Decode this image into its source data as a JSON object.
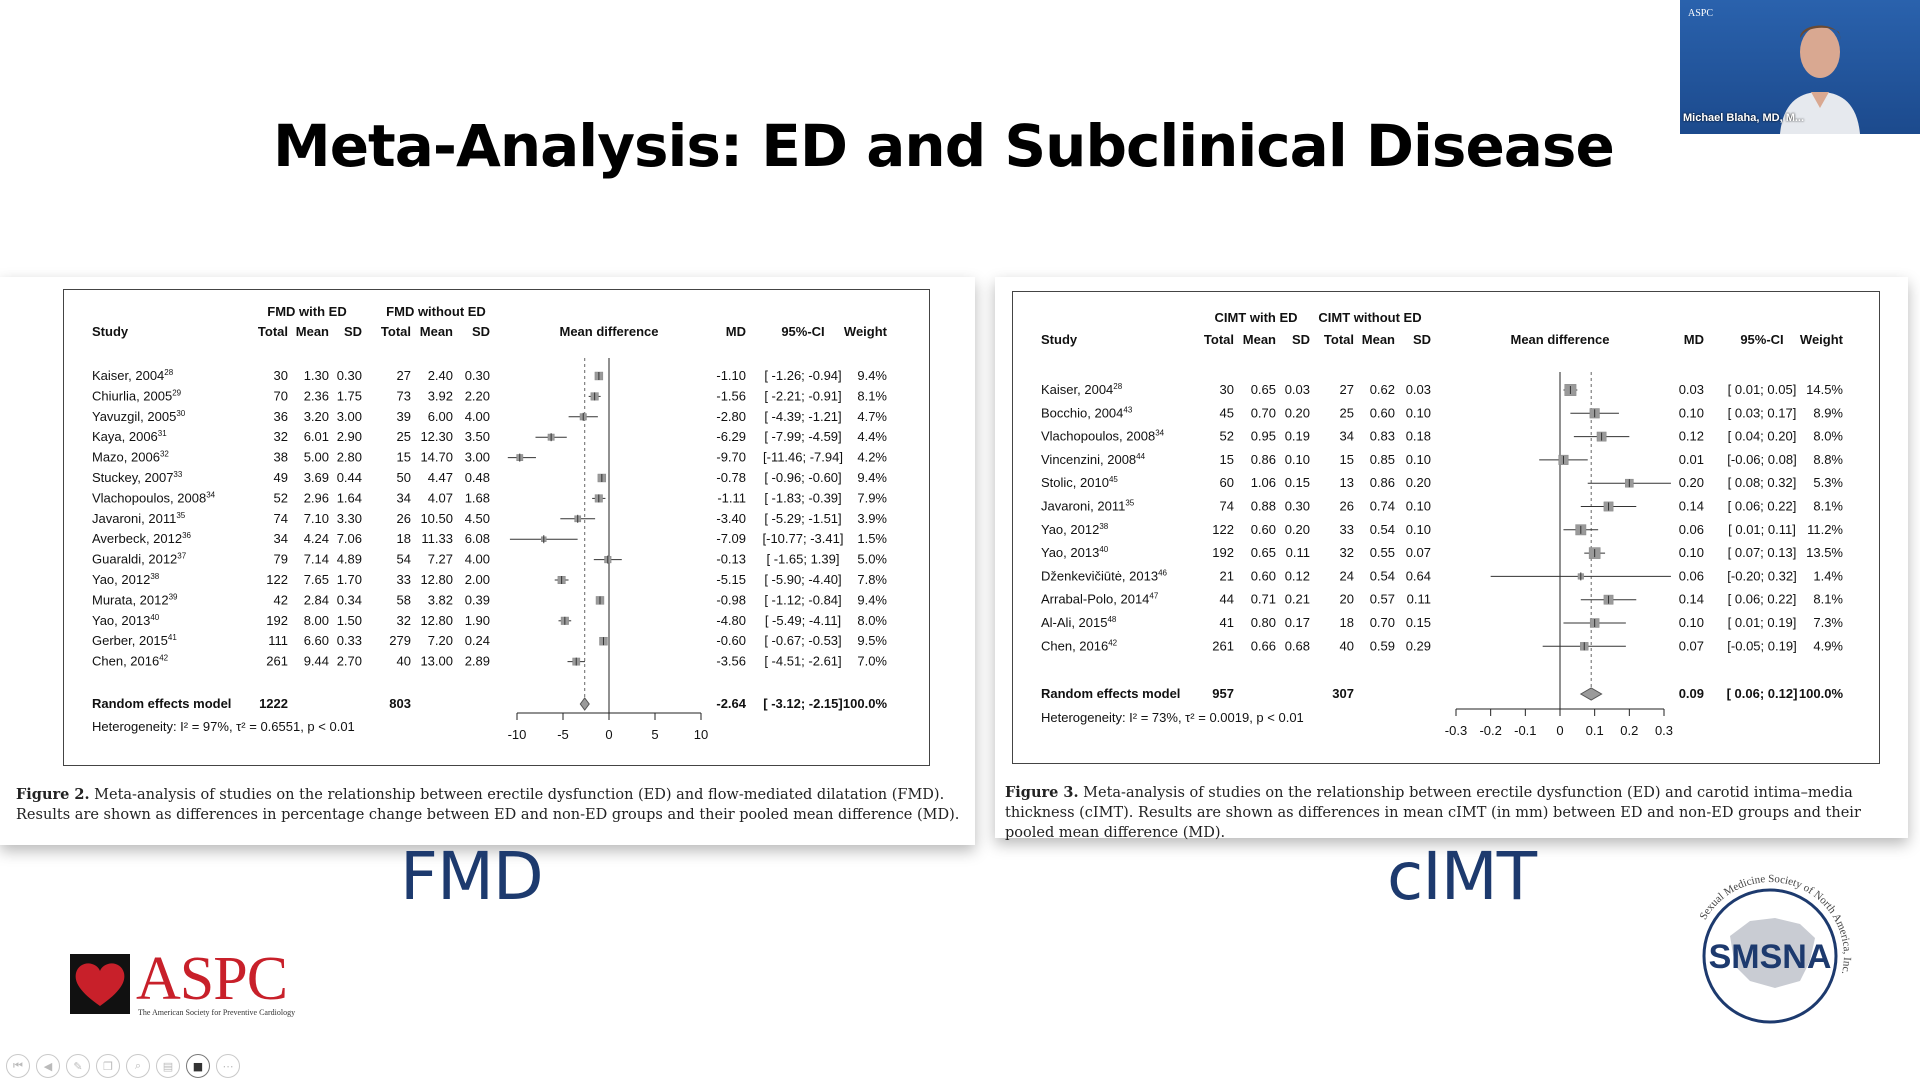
{
  "slide": {
    "title": "Meta-Analysis: ED and Subclinical Disease",
    "left_label": "FMD",
    "right_label": "cIMT"
  },
  "video": {
    "participant_name": "Michael Blaha, MD, M...",
    "logo_text": "ASPC"
  },
  "logos": {
    "aspc": {
      "name": "ASPC",
      "subtitle": "The American Society for Preventive Cardiology",
      "color": "#c8202a"
    },
    "smsna": {
      "name": "SMSNA",
      "ring_text": "Sexual Medicine Society of North America, Inc.",
      "color": "#1d3a6e"
    }
  },
  "toolbar": {
    "buttons": [
      {
        "icon": "first-page-icon",
        "glyph": "⏮"
      },
      {
        "icon": "previous-icon",
        "glyph": "◀"
      },
      {
        "icon": "pen-icon",
        "glyph": "✎"
      },
      {
        "icon": "copy-icon",
        "glyph": "❐"
      },
      {
        "icon": "zoom-icon",
        "glyph": "⌕"
      },
      {
        "icon": "slides-icon",
        "glyph": "▤"
      },
      {
        "icon": "camera-icon",
        "glyph": "■"
      },
      {
        "icon": "more-icon",
        "glyph": "⋯"
      }
    ]
  },
  "captions": {
    "fmd": {
      "figure": "Figure 2.",
      "text": "Meta-analysis of studies on the relationship between erectile dysfunction (ED) and flow-mediated dilatation (FMD). Results are shown as differences in percentage change between ED and non-ED groups and their pooled mean difference (MD)."
    },
    "cimt": {
      "figure": "Figure 3.",
      "text": "Meta-analysis of studies on the relationship between erectile dysfunction (ED) and carotid intima–media thickness (cIMT). Results are shown as differences in mean cIMT (in mm) between ED and non-ED groups and their pooled mean difference (MD)."
    }
  },
  "chart_data": [
    {
      "type": "forest",
      "id": "fmd",
      "group_headers": [
        "FMD with ED",
        "FMD without ED"
      ],
      "columns": [
        "Study",
        "Total",
        "Mean",
        "SD",
        "Total",
        "Mean",
        "SD",
        "Mean difference",
        "MD",
        "95%-CI",
        "Weight"
      ],
      "xlim": [
        -10,
        10
      ],
      "xticks": [
        -10,
        -5,
        0,
        5,
        10
      ],
      "xtick_labels": [
        "-10",
        "-5",
        "0",
        "5",
        "10"
      ],
      "rows": [
        {
          "study": "Kaiser, 2004",
          "ref": "28",
          "n_ed": "30",
          "mean_ed": "1.30",
          "sd_ed": "0.30",
          "n_no": "27",
          "mean_no": "2.40",
          "sd_no": "0.30",
          "md": -1.1,
          "lo": -1.26,
          "hi": -0.94,
          "md_text": "-1.10",
          "ci_text": "[ -1.26; -0.94]",
          "weight": "9.4%"
        },
        {
          "study": "Chiurlia, 2005",
          "ref": "29",
          "n_ed": "70",
          "mean_ed": "2.36",
          "sd_ed": "1.75",
          "n_no": "73",
          "mean_no": "3.92",
          "sd_no": "2.20",
          "md": -1.56,
          "lo": -2.21,
          "hi": -0.91,
          "md_text": "-1.56",
          "ci_text": "[ -2.21; -0.91]",
          "weight": "8.1%"
        },
        {
          "study": "Yavuzgil, 2005",
          "ref": "30",
          "n_ed": "36",
          "mean_ed": "3.20",
          "sd_ed": "3.00",
          "n_no": "39",
          "mean_no": "6.00",
          "sd_no": "4.00",
          "md": -2.8,
          "lo": -4.39,
          "hi": -1.21,
          "md_text": "-2.80",
          "ci_text": "[ -4.39; -1.21]",
          "weight": "4.7%"
        },
        {
          "study": "Kaya, 2006",
          "ref": "31",
          "n_ed": "32",
          "mean_ed": "6.01",
          "sd_ed": "2.90",
          "n_no": "25",
          "mean_no": "12.30",
          "sd_no": "3.50",
          "md": -6.29,
          "lo": -7.99,
          "hi": -4.59,
          "md_text": "-6.29",
          "ci_text": "[ -7.99; -4.59]",
          "weight": "4.4%"
        },
        {
          "study": "Mazo, 2006",
          "ref": "32",
          "n_ed": "38",
          "mean_ed": "5.00",
          "sd_ed": "2.80",
          "n_no": "15",
          "mean_no": "14.70",
          "sd_no": "3.00",
          "md": -9.7,
          "lo": -11.46,
          "hi": -7.94,
          "md_text": "-9.70",
          "ci_text": "[-11.46; -7.94]",
          "weight": "4.2%"
        },
        {
          "study": "Stuckey, 2007",
          "ref": "33",
          "n_ed": "49",
          "mean_ed": "3.69",
          "sd_ed": "0.44",
          "n_no": "50",
          "mean_no": "4.47",
          "sd_no": "0.48",
          "md": -0.78,
          "lo": -0.96,
          "hi": -0.6,
          "md_text": "-0.78",
          "ci_text": "[ -0.96; -0.60]",
          "weight": "9.4%"
        },
        {
          "study": "Vlachopoulos, 2008",
          "ref": "34",
          "n_ed": "52",
          "mean_ed": "2.96",
          "sd_ed": "1.64",
          "n_no": "34",
          "mean_no": "4.07",
          "sd_no": "1.68",
          "md": -1.11,
          "lo": -1.83,
          "hi": -0.39,
          "md_text": "-1.11",
          "ci_text": "[ -1.83; -0.39]",
          "weight": "7.9%"
        },
        {
          "study": "Javaroni, 2011",
          "ref": "35",
          "n_ed": "74",
          "mean_ed": "7.10",
          "sd_ed": "3.30",
          "n_no": "26",
          "mean_no": "10.50",
          "sd_no": "4.50",
          "md": -3.4,
          "lo": -5.29,
          "hi": -1.51,
          "md_text": "-3.40",
          "ci_text": "[ -5.29; -1.51]",
          "weight": "3.9%"
        },
        {
          "study": "Averbeck, 2012",
          "ref": "36",
          "n_ed": "34",
          "mean_ed": "4.24",
          "sd_ed": "7.06",
          "n_no": "18",
          "mean_no": "11.33",
          "sd_no": "6.08",
          "md": -7.09,
          "lo": -10.77,
          "hi": -3.41,
          "md_text": "-7.09",
          "ci_text": "[-10.77; -3.41]",
          "weight": "1.5%"
        },
        {
          "study": "Guaraldi, 2012",
          "ref": "37",
          "n_ed": "79",
          "mean_ed": "7.14",
          "sd_ed": "4.89",
          "n_no": "54",
          "mean_no": "7.27",
          "sd_no": "4.00",
          "md": -0.13,
          "lo": -1.65,
          "hi": 1.39,
          "md_text": "-0.13",
          "ci_text": "[ -1.65; 1.39]",
          "weight": "5.0%"
        },
        {
          "study": "Yao, 2012",
          "ref": "38",
          "n_ed": "122",
          "mean_ed": "7.65",
          "sd_ed": "1.70",
          "n_no": "33",
          "mean_no": "12.80",
          "sd_no": "2.00",
          "md": -5.15,
          "lo": -5.9,
          "hi": -4.4,
          "md_text": "-5.15",
          "ci_text": "[ -5.90; -4.40]",
          "weight": "7.8%"
        },
        {
          "study": "Murata, 2012",
          "ref": "39",
          "n_ed": "42",
          "mean_ed": "2.84",
          "sd_ed": "0.34",
          "n_no": "58",
          "mean_no": "3.82",
          "sd_no": "0.39",
          "md": -0.98,
          "lo": -1.12,
          "hi": -0.84,
          "md_text": "-0.98",
          "ci_text": "[ -1.12; -0.84]",
          "weight": "9.4%"
        },
        {
          "study": "Yao, 2013",
          "ref": "40",
          "n_ed": "192",
          "mean_ed": "8.00",
          "sd_ed": "1.50",
          "n_no": "32",
          "mean_no": "12.80",
          "sd_no": "1.90",
          "md": -4.8,
          "lo": -5.49,
          "hi": -4.11,
          "md_text": "-4.80",
          "ci_text": "[ -5.49; -4.11]",
          "weight": "8.0%"
        },
        {
          "study": "Gerber, 2015",
          "ref": "41",
          "n_ed": "111",
          "mean_ed": "6.60",
          "sd_ed": "0.33",
          "n_no": "279",
          "mean_no": "7.20",
          "sd_no": "0.24",
          "md": -0.6,
          "lo": -0.67,
          "hi": -0.53,
          "md_text": "-0.60",
          "ci_text": "[ -0.67; -0.53]",
          "weight": "9.5%"
        },
        {
          "study": "Chen, 2016",
          "ref": "42",
          "n_ed": "261",
          "mean_ed": "9.44",
          "sd_ed": "2.70",
          "n_no": "40",
          "mean_no": "13.00",
          "sd_no": "2.89",
          "md": -3.56,
          "lo": -4.51,
          "hi": -2.61,
          "md_text": "-3.56",
          "ci_text": "[ -4.51; -2.61]",
          "weight": "7.0%"
        }
      ],
      "pooled": {
        "label": "Random effects model",
        "n_ed": "1222",
        "n_no": "803",
        "md": -2.64,
        "lo": -3.12,
        "hi": -2.15,
        "md_text": "-2.64",
        "ci_text": "[ -3.12; -2.15]",
        "weight": "100.0%"
      },
      "heterogeneity": "Heterogeneity: I² = 97%, τ² = 0.6551, p < 0.01"
    },
    {
      "type": "forest",
      "id": "cimt",
      "group_headers": [
        "CIMT with ED",
        "CIMT without ED"
      ],
      "columns": [
        "Study",
        "Total",
        "Mean",
        "SD",
        "Total",
        "Mean",
        "SD",
        "Mean difference",
        "MD",
        "95%-CI",
        "Weight"
      ],
      "xlim": [
        -0.3,
        0.3
      ],
      "xticks": [
        -0.3,
        -0.2,
        -0.1,
        0,
        0.1,
        0.2,
        0.3
      ],
      "xtick_labels": [
        "-0.3",
        "-0.2",
        "-0.1",
        "0",
        "0.1",
        "0.2",
        "0.3"
      ],
      "rows": [
        {
          "study": "Kaiser, 2004",
          "ref": "28",
          "n_ed": "30",
          "mean_ed": "0.65",
          "sd_ed": "0.03",
          "n_no": "27",
          "mean_no": "0.62",
          "sd_no": "0.03",
          "md": 0.03,
          "lo": 0.01,
          "hi": 0.05,
          "md_text": "0.03",
          "ci_text": "[ 0.01; 0.05]",
          "weight": "14.5%"
        },
        {
          "study": "Bocchio, 2004",
          "ref": "43",
          "n_ed": "45",
          "mean_ed": "0.70",
          "sd_ed": "0.20",
          "n_no": "25",
          "mean_no": "0.60",
          "sd_no": "0.10",
          "md": 0.1,
          "lo": 0.03,
          "hi": 0.17,
          "md_text": "0.10",
          "ci_text": "[ 0.03; 0.17]",
          "weight": "8.9%"
        },
        {
          "study": "Vlachopoulos, 2008",
          "ref": "34",
          "n_ed": "52",
          "mean_ed": "0.95",
          "sd_ed": "0.19",
          "n_no": "34",
          "mean_no": "0.83",
          "sd_no": "0.18",
          "md": 0.12,
          "lo": 0.04,
          "hi": 0.2,
          "md_text": "0.12",
          "ci_text": "[ 0.04; 0.20]",
          "weight": "8.0%"
        },
        {
          "study": "Vincenzini, 2008",
          "ref": "44",
          "n_ed": "15",
          "mean_ed": "0.86",
          "sd_ed": "0.10",
          "n_no": "15",
          "mean_no": "0.85",
          "sd_no": "0.10",
          "md": 0.01,
          "lo": -0.06,
          "hi": 0.08,
          "md_text": "0.01",
          "ci_text": "[-0.06; 0.08]",
          "weight": "8.8%"
        },
        {
          "study": "Stolic, 2010",
          "ref": "45",
          "n_ed": "60",
          "mean_ed": "1.06",
          "sd_ed": "0.15",
          "n_no": "13",
          "mean_no": "0.86",
          "sd_no": "0.20",
          "md": 0.2,
          "lo": 0.08,
          "hi": 0.32,
          "md_text": "0.20",
          "ci_text": "[ 0.08; 0.32]",
          "weight": "5.3%"
        },
        {
          "study": "Javaroni, 2011",
          "ref": "35",
          "n_ed": "74",
          "mean_ed": "0.88",
          "sd_ed": "0.30",
          "n_no": "26",
          "mean_no": "0.74",
          "sd_no": "0.10",
          "md": 0.14,
          "lo": 0.06,
          "hi": 0.22,
          "md_text": "0.14",
          "ci_text": "[ 0.06; 0.22]",
          "weight": "8.1%"
        },
        {
          "study": "Yao, 2012",
          "ref": "38",
          "n_ed": "122",
          "mean_ed": "0.60",
          "sd_ed": "0.20",
          "n_no": "33",
          "mean_no": "0.54",
          "sd_no": "0.10",
          "md": 0.06,
          "lo": 0.01,
          "hi": 0.11,
          "md_text": "0.06",
          "ci_text": "[ 0.01; 0.11]",
          "weight": "11.2%"
        },
        {
          "study": "Yao, 2013",
          "ref": "40",
          "n_ed": "192",
          "mean_ed": "0.65",
          "sd_ed": "0.11",
          "n_no": "32",
          "mean_no": "0.55",
          "sd_no": "0.07",
          "md": 0.1,
          "lo": 0.07,
          "hi": 0.13,
          "md_text": "0.10",
          "ci_text": "[ 0.07; 0.13]",
          "weight": "13.5%"
        },
        {
          "study": "Dženkevičiūtė, 2013",
          "ref": "46",
          "n_ed": "21",
          "mean_ed": "0.60",
          "sd_ed": "0.12",
          "n_no": "24",
          "mean_no": "0.54",
          "sd_no": "0.64",
          "md": 0.06,
          "lo": -0.2,
          "hi": 0.32,
          "md_text": "0.06",
          "ci_text": "[-0.20; 0.32]",
          "weight": "1.4%"
        },
        {
          "study": "Arrabal-Polo, 2014",
          "ref": "47",
          "n_ed": "44",
          "mean_ed": "0.71",
          "sd_ed": "0.21",
          "n_no": "20",
          "mean_no": "0.57",
          "sd_no": "0.11",
          "md": 0.14,
          "lo": 0.06,
          "hi": 0.22,
          "md_text": "0.14",
          "ci_text": "[ 0.06; 0.22]",
          "weight": "8.1%"
        },
        {
          "study": "Al-Ali, 2015",
          "ref": "48",
          "n_ed": "41",
          "mean_ed": "0.80",
          "sd_ed": "0.17",
          "n_no": "18",
          "mean_no": "0.70",
          "sd_no": "0.15",
          "md": 0.1,
          "lo": 0.01,
          "hi": 0.19,
          "md_text": "0.10",
          "ci_text": "[ 0.01; 0.19]",
          "weight": "7.3%"
        },
        {
          "study": "Chen, 2016",
          "ref": "42",
          "n_ed": "261",
          "mean_ed": "0.66",
          "sd_ed": "0.68",
          "n_no": "40",
          "mean_no": "0.59",
          "sd_no": "0.29",
          "md": 0.07,
          "lo": -0.05,
          "hi": 0.19,
          "md_text": "0.07",
          "ci_text": "[-0.05; 0.19]",
          "weight": "4.9%"
        }
      ],
      "pooled": {
        "label": "Random effects model",
        "n_ed": "957",
        "n_no": "307",
        "md": 0.09,
        "lo": 0.06,
        "hi": 0.12,
        "md_text": "0.09",
        "ci_text": "[ 0.06; 0.12]",
        "weight": "100.0%"
      },
      "heterogeneity": "Heterogeneity: I² = 73%, τ² = 0.0019, p < 0.01"
    }
  ]
}
